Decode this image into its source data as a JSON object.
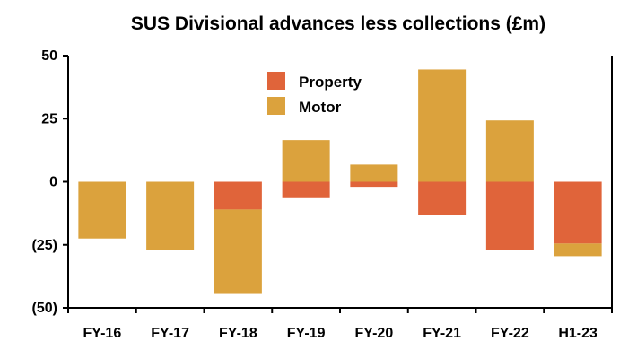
{
  "chart_data": {
    "type": "bar",
    "stacked": true,
    "title": "SUS Divisional advances less collections (£m)",
    "xlabel": "",
    "ylabel": "",
    "ylim": [
      -50,
      50
    ],
    "yticks": [
      50,
      25,
      0,
      -25,
      -50
    ],
    "ytick_labels": [
      "50",
      "25",
      "0",
      "(25)",
      "(50)"
    ],
    "grid": false,
    "legend_position": "top-center",
    "categories": [
      "FY-16",
      "FY-17",
      "FY-18",
      "FY-19",
      "FY-20",
      "FY-21",
      "FY-22",
      "H1-23"
    ],
    "series": [
      {
        "name": "Property",
        "color": "#E0643A",
        "values": [
          0,
          0,
          -11,
          -6.5,
          -2,
          -13,
          -27,
          -24.5
        ]
      },
      {
        "name": "Motor",
        "color": "#DBA23D",
        "values": [
          -22.5,
          -27,
          -33.5,
          16.5,
          6.8,
          44.5,
          24.3,
          -5
        ]
      }
    ]
  }
}
